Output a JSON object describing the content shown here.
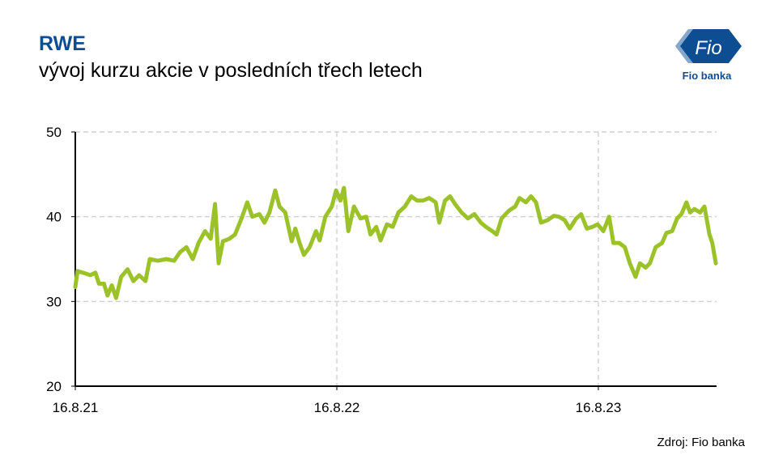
{
  "chart_data": {
    "type": "line",
    "title": "RWE",
    "subtitle": "vývoj kurzu akcie v posledních třech letech",
    "source": "Zdroj:  Fio banka",
    "color": "#9cc22a",
    "grid": true,
    "x": [
      "16.8.21",
      "19.8.21",
      "30.8.21",
      "6.9.21",
      "13.9.21",
      "18.9.21",
      "25.9.21",
      "30.9.21",
      "6.10.21",
      "12.10.21",
      "19.10.21",
      "28.10.21",
      "5.11.21",
      "13.11.21",
      "22.11.21",
      "28.11.21",
      "9.12.21",
      "21.12.21",
      "1.1.22",
      "9.1.22",
      "18.1.22",
      "27.1.22",
      "4.2.22",
      "13.2.22",
      "21.2.22",
      "27.2.22",
      "4.3.22",
      "10.3.22",
      "19.3.22",
      "27.3.22",
      "5.4.22",
      "13.4.22",
      "20.4.22",
      "30.4.22",
      "7.5.22",
      "14.5.22",
      "22.5.22",
      "28.5.22",
      "5.6.22",
      "14.6.22",
      "19.6.22",
      "25.6.22",
      "1.7.22",
      "9.7.22",
      "18.7.22",
      "23.7.22",
      "31.7.22",
      "9.8.22",
      "15.8.22",
      "21.8.22",
      "26.8.22",
      "1.9.22",
      "9.9.22",
      "18.9.22",
      "26.9.22",
      "2.10.22",
      "10.10.22",
      "16.10.22",
      "25.10.22",
      "2.11.22",
      "10.11.22",
      "19.11.22",
      "28.11.22",
      "6.12.22",
      "14.12.22",
      "23.12.22",
      "1.1.23",
      "6.1.23",
      "14.1.23",
      "21.1.23",
      "28.1.23",
      "6.2.23",
      "15.2.23",
      "24.2.23",
      "5.3.23",
      "12.3.23",
      "21.3.23",
      "27.3.23",
      "3.4.23",
      "13.4.23",
      "22.4.23",
      "28.4.23",
      "7.5.23",
      "14.5.23",
      "21.5.23",
      "28.5.23",
      "6.6.23",
      "15.6.23",
      "22.6.23",
      "30.6.23",
      "7.7.23",
      "16.7.23",
      "23.7.23",
      "31.7.23",
      "8.8.23",
      "15.8.23",
      "23.8.23",
      "31.8.23",
      "6.9.23",
      "14.9.23",
      "22.9.23",
      "29.9.23",
      "7.10.23",
      "13.10.23",
      "21.10.23",
      "27.10.23",
      "4.11.23",
      "13.11.23",
      "19.11.23",
      "27.11.23",
      "4.12.23",
      "10.12.23",
      "17.12.23",
      "22.12.23",
      "28.12.23",
      "5.1.24",
      "11.1.24",
      "18.1.24",
      "22.1.24",
      "27.1.24"
    ],
    "values": [
      31.7,
      33.6,
      33.3,
      33.1,
      33.4,
      32.1,
      32.1,
      30.7,
      31.9,
      30.4,
      32.9,
      33.8,
      32.4,
      33.1,
      32.4,
      35.0,
      34.8,
      35.0,
      34.8,
      35.8,
      36.4,
      35.0,
      36.9,
      38.3,
      37.4,
      41.5,
      34.5,
      37.1,
      37.4,
      37.9,
      39.8,
      41.7,
      40.0,
      40.3,
      39.3,
      40.5,
      43.1,
      41.2,
      40.5,
      37.1,
      38.6,
      36.9,
      35.5,
      36.4,
      38.3,
      37.2,
      40.0,
      41.2,
      43.1,
      41.9,
      43.4,
      38.3,
      41.2,
      39.8,
      40.0,
      37.9,
      38.8,
      37.2,
      39.1,
      38.8,
      40.5,
      41.2,
      42.4,
      41.9,
      41.9,
      42.2,
      41.7,
      39.3,
      41.9,
      42.4,
      41.5,
      40.5,
      39.8,
      40.3,
      39.3,
      38.8,
      38.3,
      37.9,
      39.8,
      40.7,
      41.2,
      42.2,
      41.7,
      42.4,
      41.7,
      39.3,
      39.6,
      40.1,
      40.0,
      39.6,
      38.6,
      39.8,
      40.3,
      38.6,
      38.8,
      39.1,
      38.3,
      40.0,
      36.9,
      36.9,
      36.4,
      34.5,
      32.9,
      34.5,
      34.0,
      34.5,
      36.4,
      36.9,
      38.1,
      38.3,
      39.8,
      40.3,
      41.7,
      40.5,
      40.9,
      40.5,
      41.2,
      37.9,
      36.9,
      34.5
    ],
    "xlim": [
      "16.8.21",
      "28.1.24"
    ],
    "xticks": [
      "16.8.21",
      "16.8.22",
      "16.8.23"
    ],
    "ylim": [
      20,
      50
    ],
    "yticks": [
      20,
      30,
      40,
      50
    ]
  },
  "logo": {
    "mark": "Fio",
    "name": "Fio banka"
  }
}
